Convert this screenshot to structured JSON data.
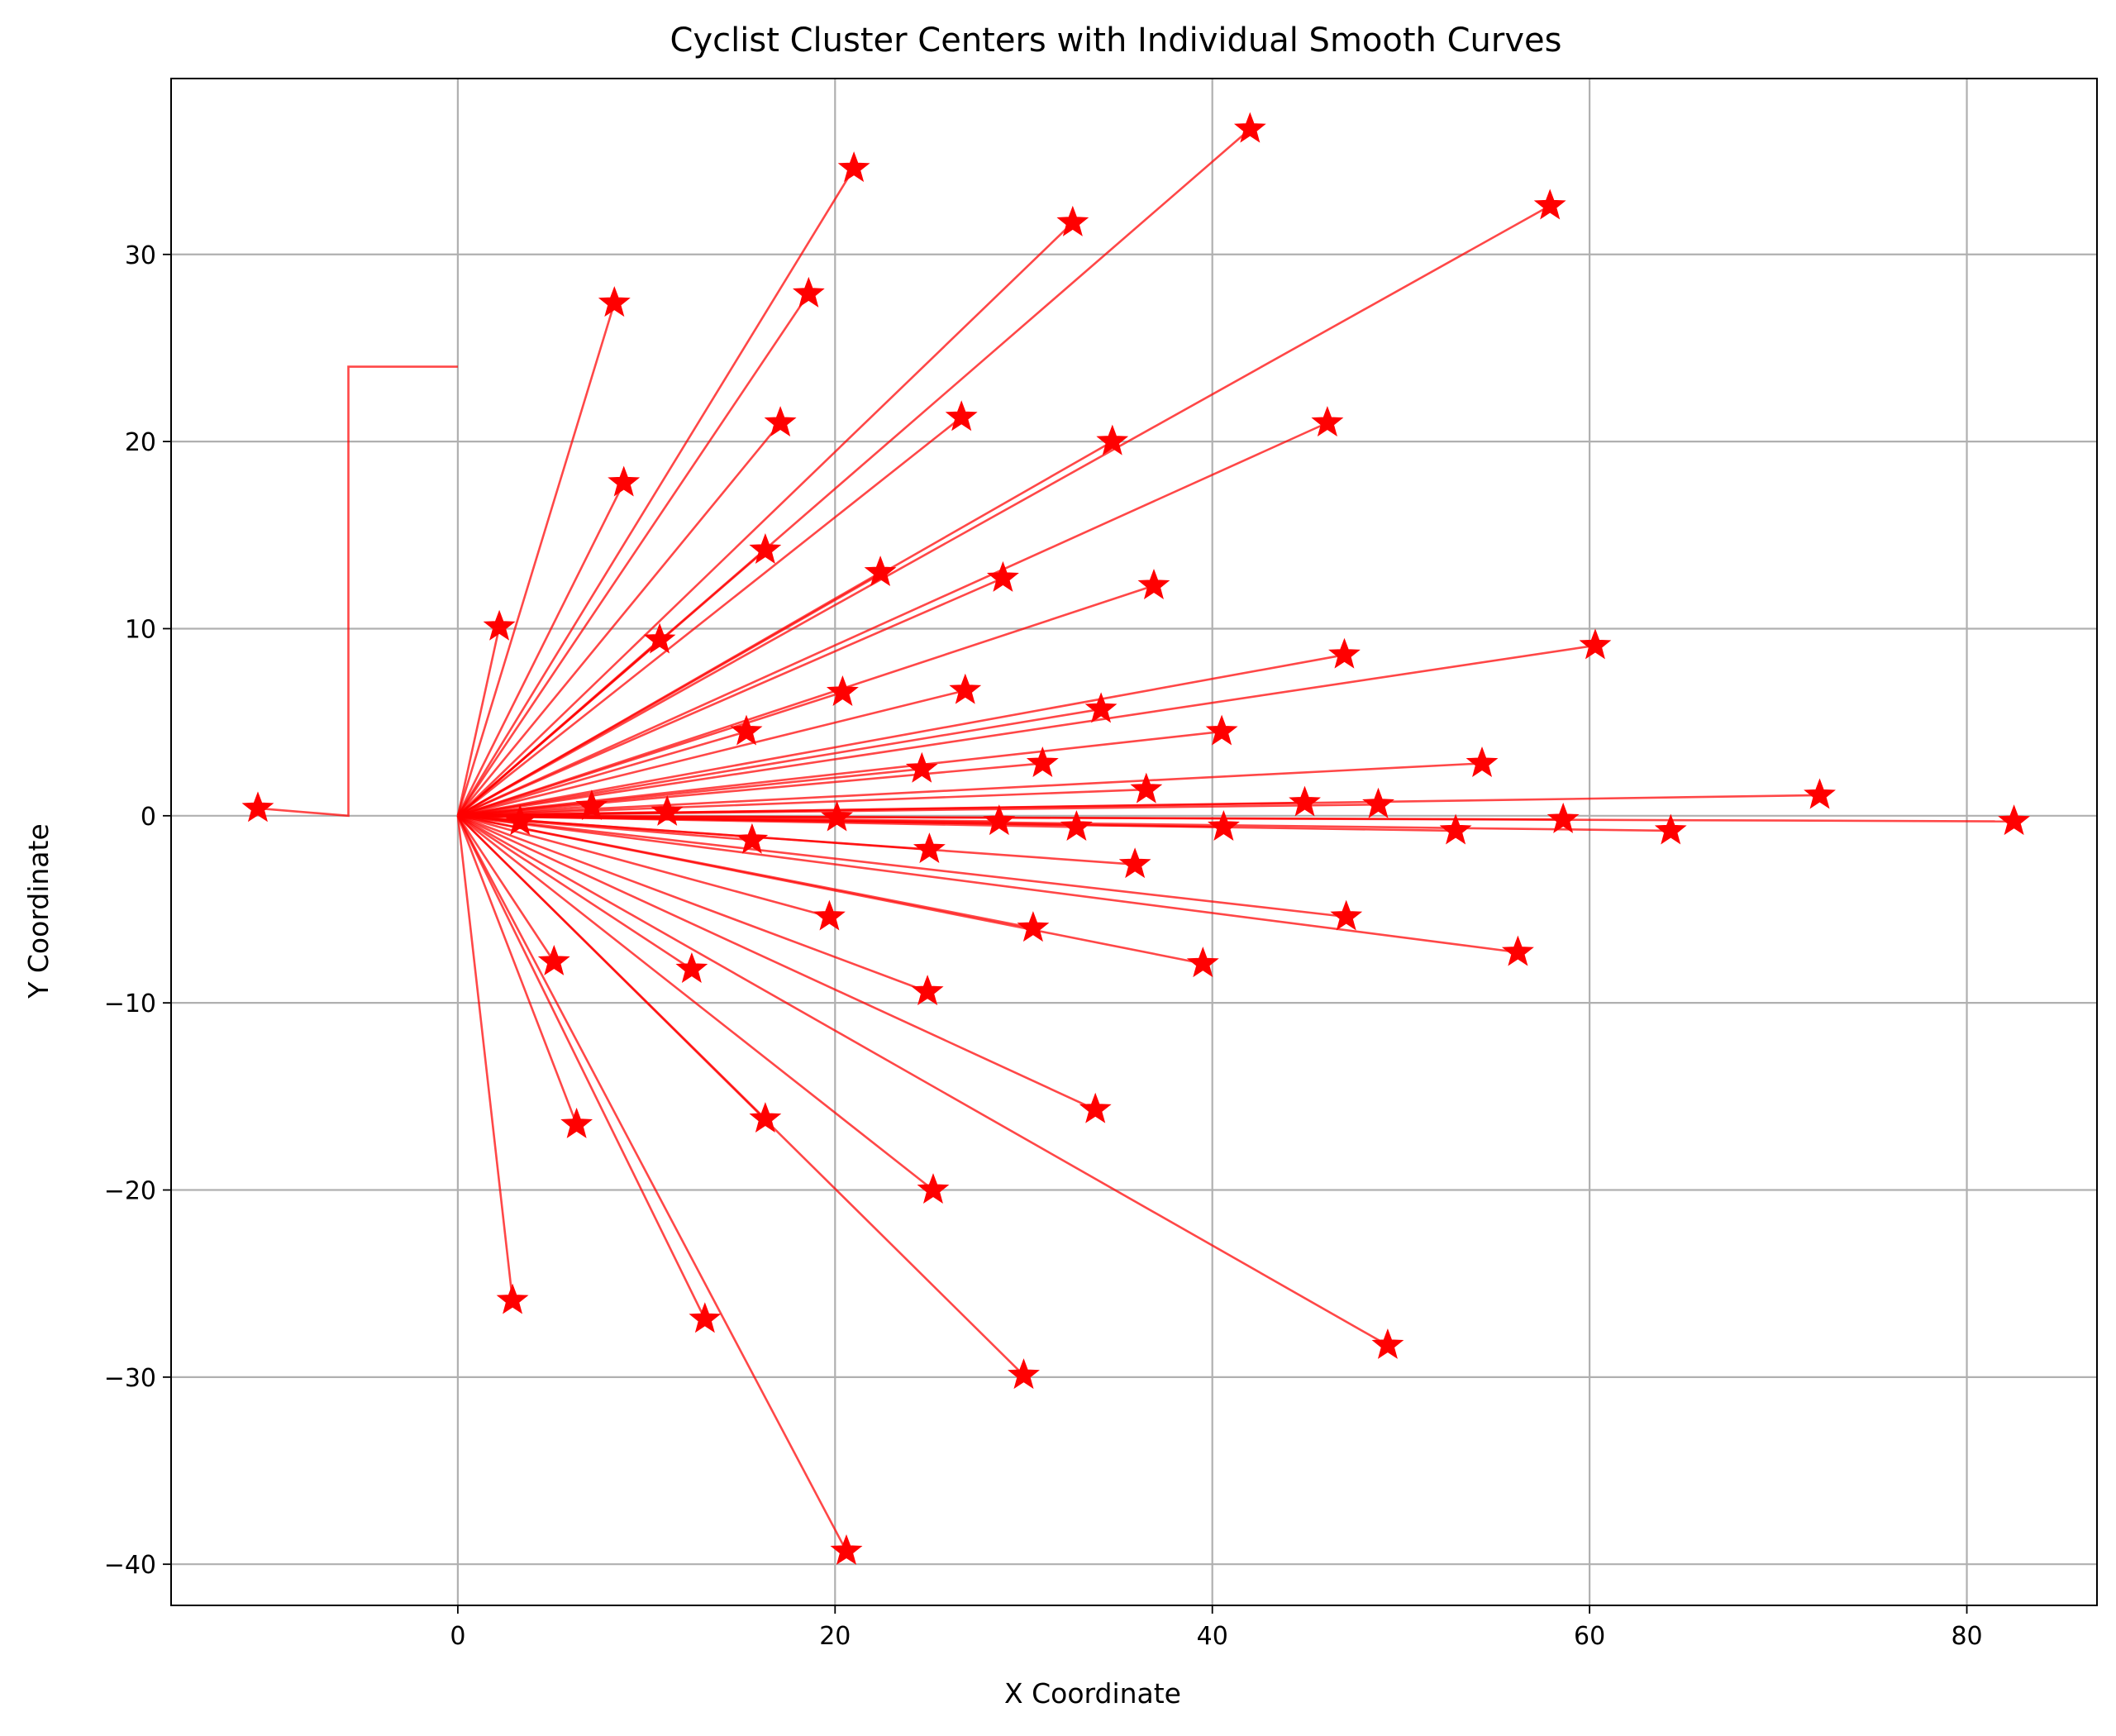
{
  "chart_data": {
    "type": "line",
    "title": "Cyclist Cluster Centers with Individual Smooth Curves",
    "xlabel": "X Coordinate",
    "ylabel": "Y Coordinate",
    "xlim": [
      -15.2,
      86.9
    ],
    "ylim": [
      -42.2,
      39.4
    ],
    "xticks": [
      0,
      20,
      40,
      60,
      80
    ],
    "yticks": [
      -40,
      -30,
      -20,
      -10,
      0,
      10,
      20,
      30
    ],
    "grid": true,
    "legend": "none",
    "color": "#ff0000",
    "marker": "star",
    "origin": [
      0,
      0
    ],
    "series": [
      {
        "path": [
          [
            0,
            0
          ],
          [
            21,
            34.6
          ]
        ]
      },
      {
        "path": [
          [
            0,
            0
          ],
          [
            42,
            36.7
          ]
        ]
      },
      {
        "path": [
          [
            0,
            0
          ],
          [
            32.6,
            31.7
          ]
        ]
      },
      {
        "path": [
          [
            0,
            0
          ],
          [
            57.9,
            32.6
          ]
        ]
      },
      {
        "path": [
          [
            0,
            0
          ],
          [
            18.6,
            27.9
          ]
        ]
      },
      {
        "path": [
          [
            0,
            0
          ],
          [
            8.3,
            27.4
          ]
        ]
      },
      {
        "path": [
          [
            0,
            24
          ],
          [
            -5.8,
            24
          ],
          [
            -5.8,
            0
          ],
          [
            -10.6,
            0.4
          ]
        ]
      },
      {
        "path": [
          [
            0,
            0
          ],
          [
            17.1,
            21
          ]
        ]
      },
      {
        "path": [
          [
            0,
            0
          ],
          [
            26.7,
            21.3
          ]
        ]
      },
      {
        "path": [
          [
            0,
            0
          ],
          [
            34.7,
            20
          ]
        ]
      },
      {
        "path": [
          [
            0,
            0
          ],
          [
            46.1,
            21
          ]
        ]
      },
      {
        "path": [
          [
            0,
            0
          ],
          [
            8.8,
            17.8
          ]
        ]
      },
      {
        "path": [
          [
            0,
            0
          ],
          [
            16.3,
            14.2
          ]
        ]
      },
      {
        "path": [
          [
            0,
            0
          ],
          [
            22.4,
            13
          ]
        ]
      },
      {
        "path": [
          [
            0,
            0
          ],
          [
            28.9,
            12.7
          ]
        ]
      },
      {
        "path": [
          [
            0,
            0
          ],
          [
            36.9,
            12.3
          ]
        ]
      },
      {
        "path": [
          [
            0,
            0
          ],
          [
            2.2,
            10.1
          ]
        ]
      },
      {
        "path": [
          [
            0,
            0
          ],
          [
            10.7,
            9.4
          ]
        ]
      },
      {
        "path": [
          [
            0,
            0
          ],
          [
            47,
            8.6
          ]
        ]
      },
      {
        "path": [
          [
            0,
            0
          ],
          [
            60.3,
            9.1
          ]
        ]
      },
      {
        "path": [
          [
            0,
            0
          ],
          [
            20.4,
            6.6
          ]
        ]
      },
      {
        "path": [
          [
            0,
            0
          ],
          [
            26.9,
            6.7
          ]
        ]
      },
      {
        "path": [
          [
            0,
            0
          ],
          [
            34.1,
            5.7
          ]
        ]
      },
      {
        "path": [
          [
            0,
            0
          ],
          [
            15.3,
            4.5
          ]
        ]
      },
      {
        "path": [
          [
            0,
            0
          ],
          [
            40.5,
            4.5
          ]
        ]
      },
      {
        "path": [
          [
            0,
            0
          ],
          [
            24.6,
            2.5
          ]
        ]
      },
      {
        "path": [
          [
            0,
            0
          ],
          [
            31,
            2.8
          ]
        ]
      },
      {
        "path": [
          [
            0,
            0
          ],
          [
            54.3,
            2.8
          ]
        ]
      },
      {
        "path": [
          [
            0,
            0
          ],
          [
            36.5,
            1.4
          ]
        ]
      },
      {
        "path": [
          [
            0,
            0
          ],
          [
            72.2,
            1.1
          ]
        ]
      },
      {
        "path": [
          [
            0,
            0
          ],
          [
            7.1,
            0.5
          ]
        ]
      },
      {
        "path": [
          [
            0,
            0
          ],
          [
            11.1,
            0.2
          ]
        ]
      },
      {
        "path": [
          [
            0,
            0
          ],
          [
            44.9,
            0.7
          ]
        ]
      },
      {
        "path": [
          [
            0,
            0
          ],
          [
            48.8,
            0.6
          ]
        ]
      },
      {
        "path": [
          [
            0,
            0
          ],
          [
            3.3,
            -0.3
          ]
        ]
      },
      {
        "path": [
          [
            0,
            0
          ],
          [
            20.1,
            -0.1
          ]
        ]
      },
      {
        "path": [
          [
            0,
            0
          ],
          [
            28.7,
            -0.3
          ]
        ]
      },
      {
        "path": [
          [
            0,
            0
          ],
          [
            32.8,
            -0.6
          ]
        ]
      },
      {
        "path": [
          [
            0,
            0
          ],
          [
            40.6,
            -0.6
          ]
        ]
      },
      {
        "path": [
          [
            0,
            0
          ],
          [
            52.9,
            -0.8
          ]
        ]
      },
      {
        "path": [
          [
            0,
            0
          ],
          [
            58.6,
            -0.2
          ]
        ]
      },
      {
        "path": [
          [
            0,
            0
          ],
          [
            64.3,
            -0.8
          ]
        ]
      },
      {
        "path": [
          [
            0,
            0
          ],
          [
            82.5,
            -0.3
          ]
        ]
      },
      {
        "path": [
          [
            0,
            0
          ],
          [
            15.6,
            -1.3
          ]
        ]
      },
      {
        "path": [
          [
            0,
            0
          ],
          [
            25,
            -1.8
          ]
        ]
      },
      {
        "path": [
          [
            0,
            0
          ],
          [
            35.9,
            -2.6
          ]
        ]
      },
      {
        "path": [
          [
            0,
            0
          ],
          [
            19.7,
            -5.4
          ]
        ]
      },
      {
        "path": [
          [
            0,
            0
          ],
          [
            30.5,
            -6
          ]
        ]
      },
      {
        "path": [
          [
            0,
            0
          ],
          [
            47.1,
            -5.4
          ]
        ]
      },
      {
        "path": [
          [
            0,
            0
          ],
          [
            56.2,
            -7.3
          ]
        ]
      },
      {
        "path": [
          [
            0,
            0
          ],
          [
            5.1,
            -7.8
          ]
        ]
      },
      {
        "path": [
          [
            0,
            0
          ],
          [
            12.4,
            -8.2
          ]
        ]
      },
      {
        "path": [
          [
            0,
            0
          ],
          [
            24.9,
            -9.4
          ]
        ]
      },
      {
        "path": [
          [
            0,
            0
          ],
          [
            39.5,
            -7.9
          ]
        ]
      },
      {
        "path": [
          [
            0,
            0
          ],
          [
            6.3,
            -16.5
          ]
        ]
      },
      {
        "path": [
          [
            0,
            0
          ],
          [
            16.3,
            -16.2
          ]
        ]
      },
      {
        "path": [
          [
            0,
            0
          ],
          [
            33.8,
            -15.7
          ]
        ]
      },
      {
        "path": [
          [
            0,
            0
          ],
          [
            25.2,
            -20
          ]
        ]
      },
      {
        "path": [
          [
            0,
            0
          ],
          [
            2.9,
            -25.9
          ]
        ]
      },
      {
        "path": [
          [
            0,
            0
          ],
          [
            13.1,
            -26.9
          ]
        ]
      },
      {
        "path": [
          [
            0,
            0
          ],
          [
            30,
            -29.9
          ]
        ]
      },
      {
        "path": [
          [
            0,
            0
          ],
          [
            49.3,
            -28.3
          ]
        ]
      },
      {
        "path": [
          [
            0,
            0
          ],
          [
            20.6,
            -39.3
          ]
        ]
      }
    ]
  }
}
